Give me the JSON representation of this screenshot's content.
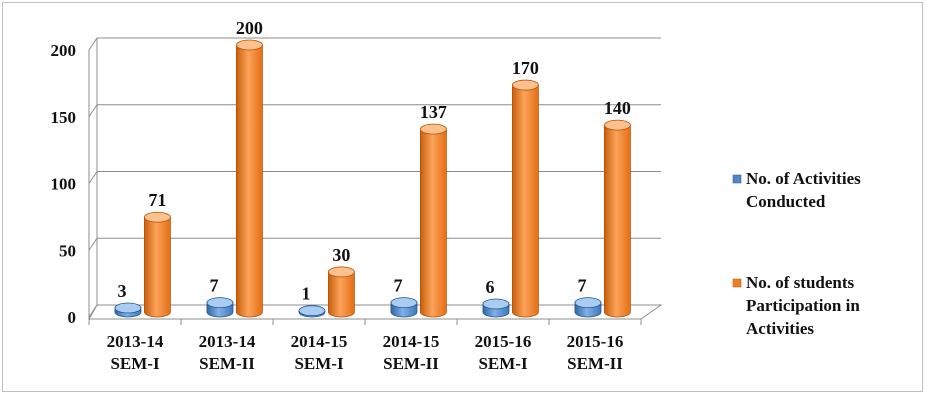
{
  "chart_data": {
    "type": "bar",
    "categories": [
      [
        "2013-14",
        "SEM-I"
      ],
      [
        "2013-14",
        "SEM-II"
      ],
      [
        "2014-15",
        "SEM-I"
      ],
      [
        "2014-15",
        "SEM-II"
      ],
      [
        "2015-16",
        "SEM-I"
      ],
      [
        "2015-16",
        "SEM-II"
      ]
    ],
    "series": [
      {
        "name": "No. of Activities Conducted",
        "values": [
          3,
          7,
          1,
          7,
          6,
          7
        ],
        "color": "#4f86c6"
      },
      {
        "name": "No. of students Participation in Activities",
        "values": [
          71,
          200,
          30,
          137,
          170,
          140
        ],
        "color": "#f07f23"
      }
    ],
    "yticks": [
      0,
      50,
      100,
      150,
      200
    ],
    "ylim": [
      0,
      200
    ],
    "grid": true,
    "legend_position": "right",
    "data_labels": true,
    "style": "3d-cylinder"
  },
  "legend": [
    {
      "lines": [
        "No. of Activities",
        "Conducted"
      ]
    },
    {
      "lines": [
        "No. of students",
        "Participation in",
        "Activities"
      ]
    }
  ]
}
